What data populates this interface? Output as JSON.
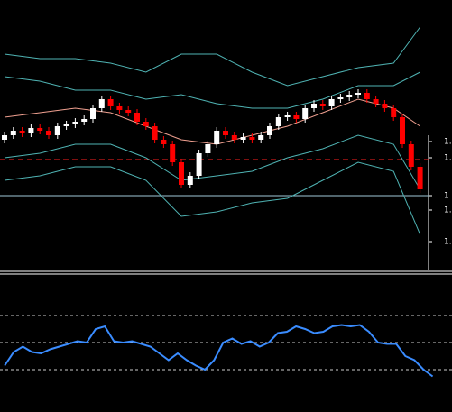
{
  "chart_data": [
    {
      "type": "candlestick",
      "ylim": [
        0,
        300
      ],
      "yticks": [
        {
          "value": 143,
          "label": "1."
        },
        {
          "value": 125,
          "label": "1."
        },
        {
          "value": 83,
          "label": "1"
        },
        {
          "value": 67,
          "label": "1."
        },
        {
          "value": 32,
          "label": "1."
        }
      ],
      "up_color": "#ffffff",
      "down_color": "#ff0000",
      "open": [
        145,
        150,
        155,
        152,
        158,
        155,
        150,
        160,
        162,
        165,
        168,
        180,
        190,
        182,
        178,
        175,
        165,
        160,
        145,
        140,
        120,
        95,
        105,
        130,
        140,
        155,
        150,
        145,
        148,
        145,
        150,
        160,
        170,
        172,
        168,
        180,
        185,
        182,
        190,
        192,
        195,
        197,
        190,
        185,
        180,
        170,
        140,
        115
      ],
      "high": [
        154,
        159,
        159,
        162,
        162,
        159,
        164,
        166,
        169,
        172,
        184,
        194,
        194,
        186,
        182,
        179,
        169,
        164,
        149,
        144,
        124,
        109,
        134,
        144,
        159,
        159,
        154,
        152,
        152,
        154,
        164,
        174,
        176,
        176,
        184,
        189,
        189,
        194,
        196,
        199,
        201,
        201,
        194,
        189,
        184,
        174,
        144,
        119
      ],
      "low": [
        141,
        146,
        148,
        148,
        151,
        146,
        146,
        156,
        158,
        161,
        164,
        176,
        178,
        174,
        171,
        161,
        156,
        141,
        136,
        116,
        91,
        91,
        101,
        126,
        136,
        146,
        141,
        141,
        141,
        141,
        146,
        156,
        166,
        164,
        164,
        176,
        178,
        178,
        186,
        188,
        191,
        186,
        181,
        176,
        166,
        136,
        111,
        86
      ],
      "close": [
        150,
        155,
        152,
        158,
        155,
        150,
        160,
        162,
        165,
        168,
        180,
        190,
        182,
        178,
        175,
        165,
        160,
        145,
        140,
        120,
        95,
        105,
        130,
        140,
        155,
        150,
        145,
        148,
        145,
        150,
        160,
        170,
        172,
        168,
        180,
        185,
        182,
        190,
        192,
        195,
        197,
        190,
        185,
        180,
        170,
        140,
        115,
        90
      ],
      "band_x": [
        0,
        4,
        8,
        12,
        16,
        20,
        24,
        28,
        32,
        36,
        40,
        44,
        47
      ],
      "bands": [
        {
          "color": "#4fb3b3",
          "values": [
            240,
            235,
            235,
            230,
            220,
            240,
            240,
            220,
            205,
            215,
            225,
            230,
            270
          ]
        },
        {
          "color": "#4fb3b3",
          "values": [
            215,
            210,
            200,
            200,
            190,
            195,
            185,
            180,
            180,
            190,
            205,
            205,
            220
          ]
        },
        {
          "color": "#f0a090",
          "values": [
            170,
            175,
            180,
            175,
            160,
            145,
            140,
            150,
            160,
            175,
            190,
            180,
            160
          ]
        },
        {
          "color": "#4fb3b3",
          "values": [
            125,
            130,
            140,
            140,
            125,
            100,
            105,
            110,
            125,
            135,
            150,
            140,
            90
          ]
        },
        {
          "color": "#4fb3b3",
          "values": [
            100,
            105,
            115,
            115,
            100,
            60,
            65,
            75,
            80,
            100,
            120,
            110,
            40
          ]
        }
      ],
      "hlines": [
        {
          "value": 123,
          "color": "#ff2020",
          "dashed": true
        },
        {
          "value": 83,
          "color": "#9fc8d8",
          "dashed": false
        }
      ]
    },
    {
      "type": "line",
      "ylim": [
        0,
        100
      ],
      "levels": [
        70,
        50,
        30
      ],
      "color": "#3a8cff",
      "values": [
        33,
        43,
        47,
        43,
        42,
        45,
        47,
        49,
        51,
        50,
        60,
        62,
        51,
        50,
        51,
        49,
        47,
        42,
        37,
        42,
        37,
        33,
        30,
        37,
        50,
        53,
        49,
        51,
        47,
        50,
        57,
        58,
        62,
        60,
        57,
        58,
        62,
        63,
        62,
        63,
        58,
        50,
        49,
        49,
        40,
        37,
        30,
        25
      ]
    }
  ]
}
